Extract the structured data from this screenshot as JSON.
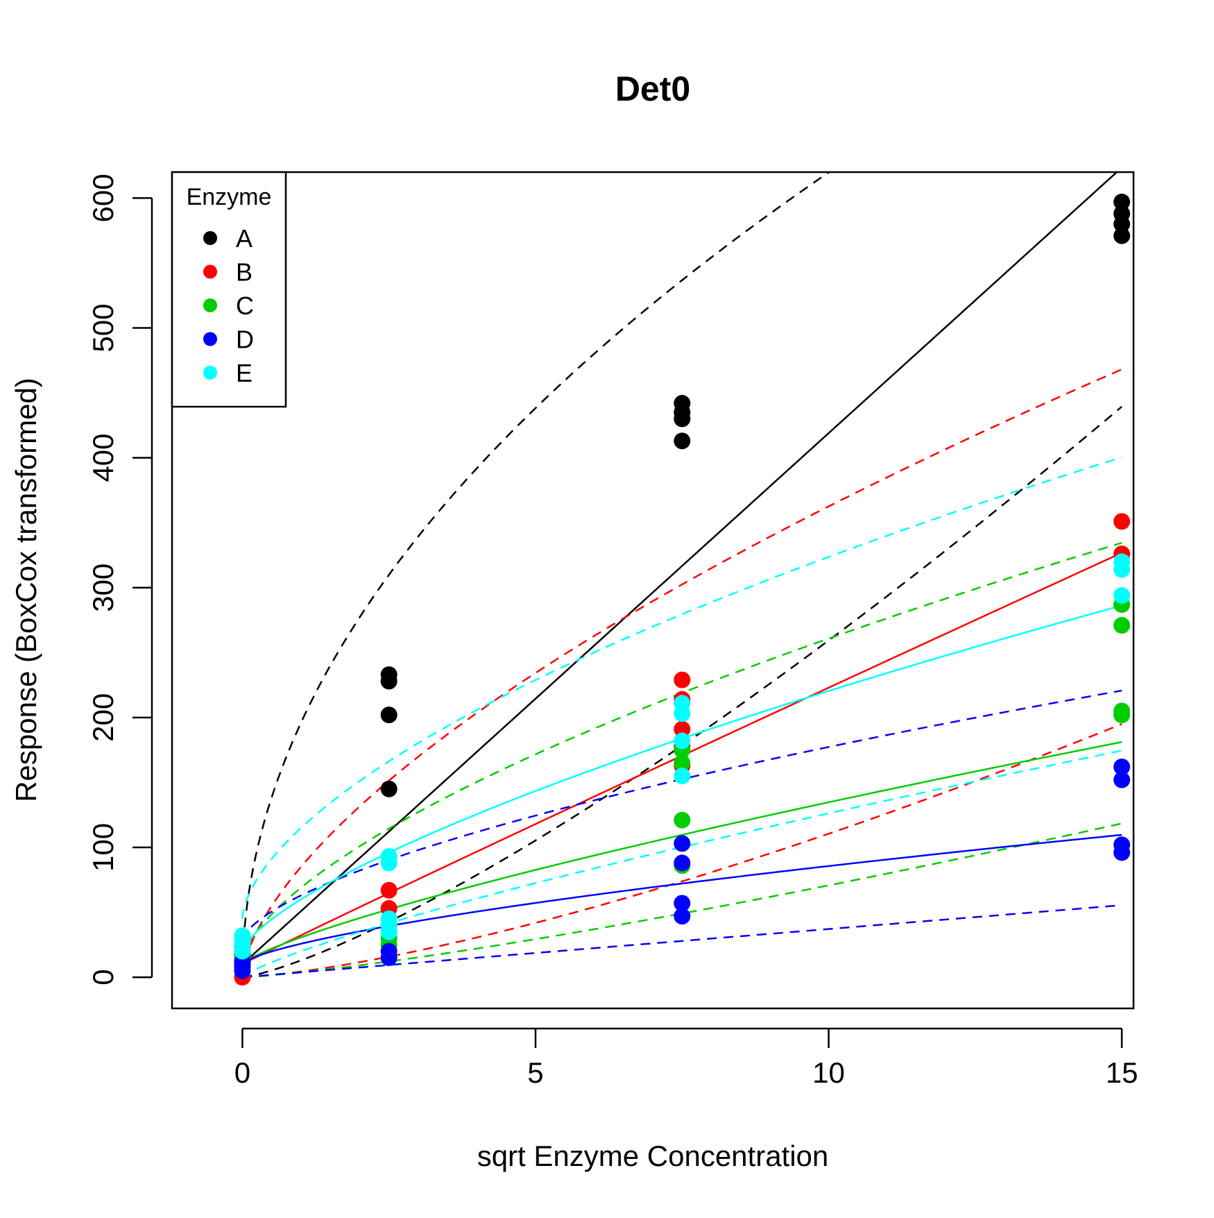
{
  "chart_data": {
    "type": "scatter",
    "title": "Det0",
    "xlabel": "sqrt Enzyme Concentration",
    "ylabel": "Response (BoxCox transformed)",
    "xlim": [
      -1.2,
      15.2
    ],
    "ylim": [
      -24,
      620
    ],
    "xticks": [
      0,
      5,
      10,
      15
    ],
    "yticks": [
      0,
      100,
      200,
      300,
      400,
      500,
      600
    ],
    "grid": false,
    "legend": {
      "title": "Enzyme",
      "position": "top-left"
    },
    "series": [
      {
        "name": "A",
        "color": "#000000",
        "points": [
          [
            0,
            12
          ],
          [
            0,
            18
          ],
          [
            0,
            24
          ],
          [
            0,
            28
          ],
          [
            2.5,
            145
          ],
          [
            2.5,
            202
          ],
          [
            2.5,
            228
          ],
          [
            2.5,
            233
          ],
          [
            7.5,
            413
          ],
          [
            7.5,
            430
          ],
          [
            7.5,
            435
          ],
          [
            7.5,
            442
          ],
          [
            15,
            571
          ],
          [
            15,
            580
          ],
          [
            15,
            588
          ],
          [
            15,
            597
          ]
        ],
        "fit": {
          "a": 10,
          "b": 40.9,
          "p": 1.0,
          "c": 0.5
        },
        "upper": {
          "a": 0,
          "b": 196,
          "p": 0.5,
          "c": 0
        },
        "lower": {
          "a": 0,
          "b": 13,
          "p": 1.3,
          "c": 0
        }
      },
      {
        "name": "B",
        "color": "#ff0000",
        "points": [
          [
            0,
            0
          ],
          [
            0,
            5
          ],
          [
            0,
            10
          ],
          [
            0,
            15
          ],
          [
            2.5,
            53
          ],
          [
            2.5,
            67
          ],
          [
            7.5,
            163
          ],
          [
            7.5,
            178
          ],
          [
            7.5,
            191
          ],
          [
            7.5,
            214
          ],
          [
            7.5,
            229
          ],
          [
            15,
            326
          ],
          [
            15,
            351
          ]
        ],
        "fit": {
          "a": 10,
          "b": 22.3,
          "p": 0.98,
          "c": 0
        },
        "upper": {
          "a": 0,
          "b": 85,
          "p": 0.63,
          "c": 0
        },
        "lower": {
          "a": 0,
          "b": 4.4,
          "p": 1.4,
          "c": 0
        }
      },
      {
        "name": "C",
        "color": "#00cd00",
        "points": [
          [
            0,
            10
          ],
          [
            0,
            15
          ],
          [
            0,
            20
          ],
          [
            2.5,
            25
          ],
          [
            2.5,
            30
          ],
          [
            2.5,
            35
          ],
          [
            7.5,
            86
          ],
          [
            7.5,
            121
          ],
          [
            7.5,
            165
          ],
          [
            7.5,
            175
          ],
          [
            15,
            202
          ],
          [
            15,
            205
          ],
          [
            15,
            271
          ],
          [
            15,
            287
          ]
        ],
        "fit": {
          "a": 10,
          "b": 20.7,
          "p": 0.78,
          "c": 0
        },
        "upper": {
          "a": 12,
          "b": 57,
          "p": 0.64,
          "c": 0
        },
        "lower": {
          "a": 0,
          "b": 3.8,
          "p": 1.27,
          "c": 0
        }
      },
      {
        "name": "D",
        "color": "#0000ff",
        "points": [
          [
            0,
            5
          ],
          [
            0,
            8
          ],
          [
            0,
            10
          ],
          [
            0,
            12
          ],
          [
            2.5,
            15
          ],
          [
            2.5,
            20
          ],
          [
            7.5,
            47
          ],
          [
            7.5,
            57
          ],
          [
            7.5,
            88
          ],
          [
            7.5,
            103
          ],
          [
            15,
            96
          ],
          [
            15,
            102
          ],
          [
            15,
            152
          ],
          [
            15,
            162
          ]
        ],
        "fit": {
          "a": 10,
          "b": 15.8,
          "p": 0.68,
          "c": 0
        },
        "upper": {
          "a": 28,
          "b": 35,
          "p": 0.63,
          "c": 0
        },
        "lower": {
          "a": 0,
          "b": 3.8,
          "p": 0.99,
          "c": 0
        }
      },
      {
        "name": "E",
        "color": "#00ffff",
        "points": [
          [
            0,
            20
          ],
          [
            0,
            25
          ],
          [
            0,
            28
          ],
          [
            0,
            32
          ],
          [
            2.5,
            35
          ],
          [
            2.5,
            40
          ],
          [
            2.5,
            45
          ],
          [
            2.5,
            88
          ],
          [
            2.5,
            93
          ],
          [
            7.5,
            155
          ],
          [
            7.5,
            182
          ],
          [
            7.5,
            203
          ],
          [
            7.5,
            211
          ],
          [
            15,
            294
          ],
          [
            15,
            314
          ],
          [
            15,
            320
          ]
        ],
        "fit": {
          "a": 20,
          "b": 40,
          "p": 0.7,
          "c": 0
        },
        "upper": {
          "a": 45,
          "b": 70,
          "p": 0.6,
          "c": 0
        },
        "lower": {
          "a": 0,
          "b": 20,
          "p": 0.8,
          "c": 0
        }
      }
    ]
  }
}
